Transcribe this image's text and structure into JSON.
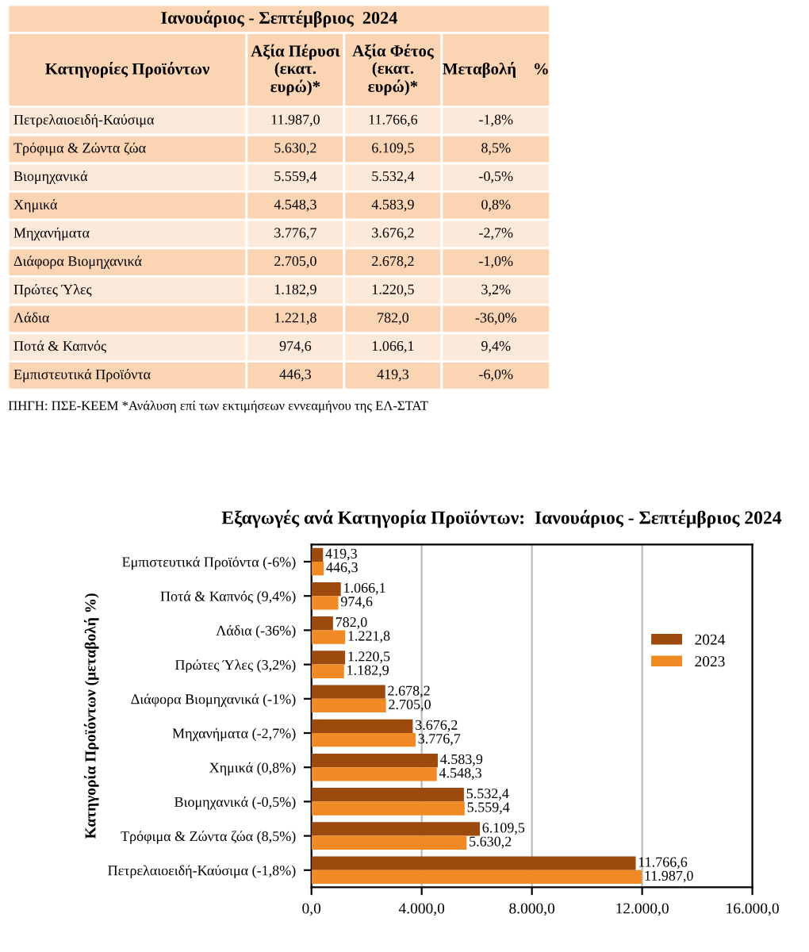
{
  "chart_data": [
    {
      "type": "other",
      "title": "Ιανουάριος - Σεπτέμβριος  2024",
      "annotations": [
        "Κατηγορίες Προϊόντων",
        "Αξία Πέρυσι\n(εκατ.\nευρώ)*",
        "Αξία Φέτος\n(εκατ.\nευρώ)*",
        "Μεταβολή    %",
        "Πετρελαιοειδή-Καύσιμα",
        "11.987,0",
        "11.766,6",
        "-1,8%",
        "Τρόφιμα & Ζώντα ζώα",
        "5.630,2",
        "6.109,5",
        "8,5%",
        "Βιομηχανικά",
        "5.559,4",
        "5.532,4",
        "-0,5%",
        "Χημικά",
        "4.548,3",
        "4.583,9",
        "0,8%",
        "Μηχανήματα",
        "3.776,7",
        "3.676,2",
        "-2,7%",
        "Διάφορα Βιομηχανικά",
        "2.705,0",
        "2.678,2",
        "-1,0%",
        "Πρώτες Ύλες",
        "1.182,9",
        "1.220,5",
        "3,2%",
        "Λάδια",
        "1.221,8",
        "782,0",
        "-36,0%",
        "Ποτά & Καπνός",
        "974,6",
        "1.066,1",
        "9,4%",
        "Εμπιστευτικά Προϊόντα",
        "446,3",
        "419,3",
        "-6,0%",
        "ΠΗΓΗ: ΠΣΕ-ΚΕΕΜ *Ανάλυση επί των εκτιμήσεων εννεαμήνου της ΕΛ-ΣΤΑΤ"
      ]
    },
    {
      "type": "bar",
      "orientation": "horizontal",
      "title": "Εξαγωγές ανά Κατηγορία Προϊόντων:  Ιανουάριος - Σεπτέμβριος 2024",
      "ylabel": "Κατηγορία Προϊόντων (μεταβολή %)",
      "categories": [
        "Εμπιστευτικά Προϊόντα (-6%)",
        "Ποτά & Καπνός (9,4%)",
        "Λάδια (-36%)",
        "Πρώτες Ύλες (3,2%)",
        "Διάφορα Βιομηχανικά (-1%)",
        "Μηχανήματα (-2,7%)",
        "Χημικά (0,8%)",
        "Βιομηχανικά (-0,5%)",
        "Τρόφιμα & Ζώντα ζώα (8,5%)",
        "Πετρελαιοειδή-Καύσιμα (-1,8%)"
      ],
      "series": [
        {
          "name": "2024",
          "color": "#9c4a0e",
          "values": [
            419.3,
            1066.1,
            782.0,
            1220.5,
            2678.2,
            3676.2,
            4583.9,
            5532.4,
            6109.5,
            11766.6
          ],
          "value_labels": [
            "419,3",
            "1.066,1",
            "782,0",
            "1.220,5",
            "2.678,2",
            "3.676,2",
            "4.583,9",
            "5.532,4",
            "6.109,5",
            "11.766,6"
          ]
        },
        {
          "name": "2023",
          "color": "#f08a24",
          "values": [
            446.3,
            974.6,
            1221.8,
            1182.9,
            2705.0,
            3776.7,
            4548.3,
            5559.4,
            5630.2,
            11987.0
          ],
          "value_labels": [
            "446,3",
            "974,6",
            "1.221,8",
            "1.182,9",
            "2.705,0",
            "3.776,7",
            "4.548,3",
            "5.559,4",
            "5.630,2",
            "11.987,0"
          ]
        }
      ],
      "xlim": [
        0,
        16000
      ],
      "xticks": [
        {
          "value": 0,
          "label": "0,0"
        },
        {
          "value": 4000,
          "label": "4.000,0"
        },
        {
          "value": 8000,
          "label": "8.000,0"
        },
        {
          "value": 12000,
          "label": "12.000,0"
        },
        {
          "value": 16000,
          "label": "16.000,0"
        }
      ],
      "grid": "x",
      "legend": "right"
    }
  ]
}
